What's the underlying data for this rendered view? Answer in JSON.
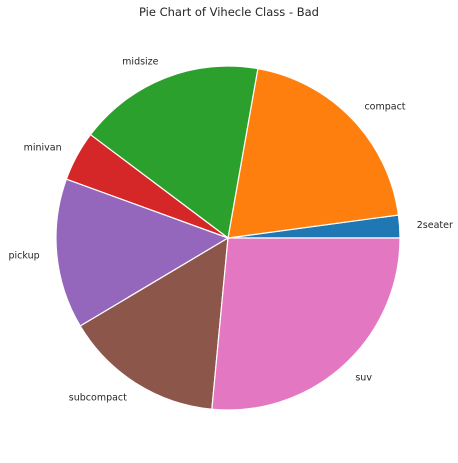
{
  "chart_data": {
    "type": "pie",
    "title": "Pie Chart of Vihecle Class - Bad",
    "categories": [
      "2seater",
      "compact",
      "midsize",
      "minivan",
      "pickup",
      "subcompact",
      "suv"
    ],
    "values": [
      5,
      47,
      41,
      11,
      33,
      35,
      62
    ],
    "colors": [
      "#1f77b4",
      "#ff7f0e",
      "#2ca02c",
      "#d62728",
      "#9467bd",
      "#8c564b",
      "#e377c2"
    ],
    "start_angle_deg": 0,
    "direction": "counterclockwise",
    "legend": "none",
    "grid": false
  }
}
